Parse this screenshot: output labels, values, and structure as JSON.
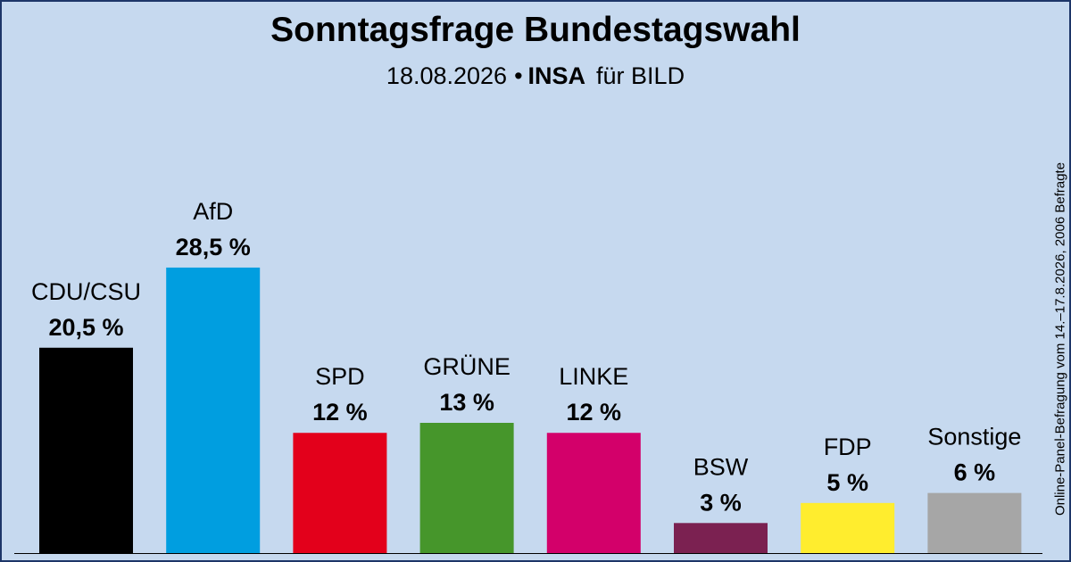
{
  "header": {
    "title": "Sonntagsfrage Bundestagswahl",
    "date": "18.08.2026",
    "separator": "•",
    "institute": "INSA",
    "client": "für BILD"
  },
  "side_note": "Online-Panel-Befragung vom 14.–17.8.2026, 2006 Befragte",
  "colors": {
    "background": "#c6d9ef",
    "border": "#1d3668"
  },
  "chart_data": {
    "type": "bar",
    "title": "Sonntagsfrage Bundestagswahl",
    "categories": [
      "CDU/CSU",
      "AfD",
      "SPD",
      "GRÜNE",
      "LINKE",
      "BSW",
      "FDP",
      "Sonstige"
    ],
    "values": [
      20.5,
      28.5,
      12,
      13,
      12,
      3,
      5,
      6
    ],
    "value_labels": [
      "20,5 %",
      "28,5 %",
      "12 %",
      "13 %",
      "12 %",
      "3 %",
      "5 %",
      "6 %"
    ],
    "colors": [
      "#000000",
      "#009ee0",
      "#e3001b",
      "#46962b",
      "#d3006a",
      "#7b2151",
      "#ffed2e",
      "#a6a6a6"
    ],
    "ylim": [
      0,
      30
    ],
    "grid": false,
    "legend": "none",
    "xlabel": "",
    "ylabel": ""
  }
}
